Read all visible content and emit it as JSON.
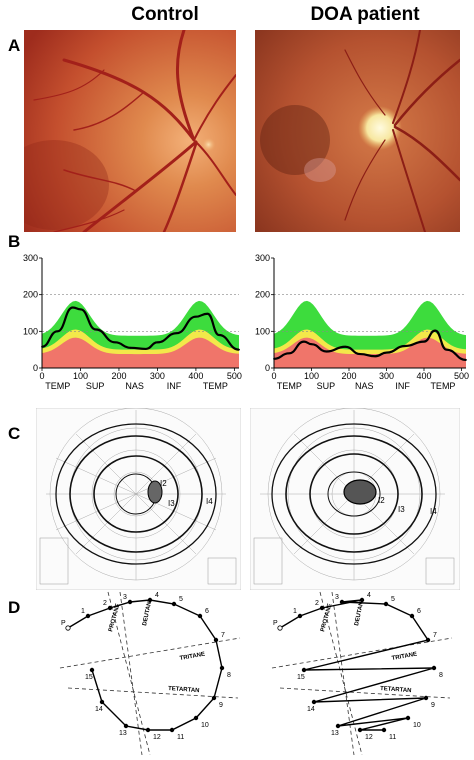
{
  "headers": {
    "control": "Control",
    "patient": "DOA patient"
  },
  "panels": {
    "a": "A",
    "b": "B",
    "c": "C",
    "d": "D"
  },
  "oct": {
    "y_ticks": [
      "0",
      "100",
      "200",
      "300"
    ],
    "x_ticks": [
      "0",
      "100",
      "200",
      "300",
      "400",
      "500"
    ],
    "sectors": [
      "TEMP",
      "SUP",
      "NAS",
      "INF",
      "TEMP"
    ]
  },
  "visual_field": {
    "isopter_labels_control": [
      "I2",
      "I3",
      "I4"
    ],
    "isopter_labels_patient": [
      "I2",
      "I3",
      "I4"
    ]
  },
  "d15": {
    "cap_numbers": [
      "P",
      "1",
      "2",
      "3",
      "4",
      "5",
      "6",
      "7",
      "8",
      "9",
      "10",
      "11",
      "12",
      "13",
      "14",
      "15"
    ],
    "axis_labels": [
      "PROTANE",
      "DEUTAN",
      "TRITANE",
      "TETARTAN"
    ]
  },
  "colors": {
    "normative_green": "#3ddc3d",
    "normative_yellow": "#f3e84a",
    "normative_red": "#f0756a",
    "rnfl_line": "#000000"
  },
  "chart_data": [
    {
      "type": "area",
      "title": "",
      "panel": "B-control",
      "xlim": [
        0,
        512
      ],
      "ylim": [
        0,
        300
      ],
      "x": [
        0,
        40,
        80,
        100,
        140,
        190,
        230,
        270,
        300,
        350,
        400,
        430,
        460,
        512
      ],
      "series": [
        {
          "values": [
            58,
            100,
            165,
            160,
            105,
            70,
            55,
            52,
            70,
            95,
            140,
            148,
            90,
            50
          ]
        }
      ]
    },
    {
      "type": "area",
      "title": "",
      "panel": "B-patient",
      "xlim": [
        0,
        512
      ],
      "ylim": [
        0,
        300
      ],
      "x": [
        0,
        40,
        80,
        100,
        140,
        190,
        230,
        270,
        300,
        350,
        400,
        430,
        460,
        512
      ],
      "series": [
        {
          "values": [
            25,
            40,
            72,
            65,
            45,
            58,
            38,
            32,
            42,
            60,
            72,
            102,
            50,
            22
          ]
        }
      ]
    }
  ]
}
